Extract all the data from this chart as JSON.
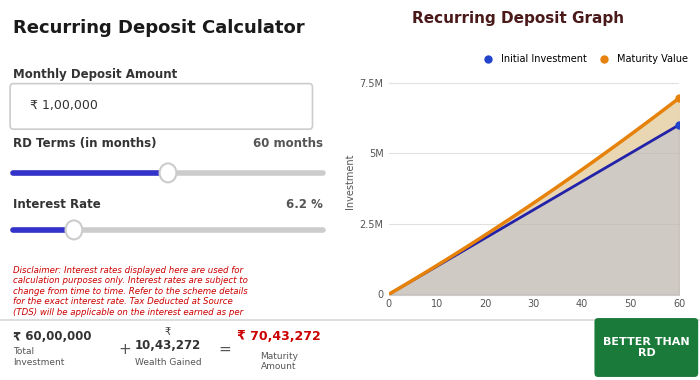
{
  "title_left": "Recurring Deposit Calculator",
  "title_right": "Recurring Deposit Graph",
  "monthly_deposit_label": "Monthly Deposit Amount",
  "monthly_deposit_value": "₹ 1,00,000",
  "rd_terms_label": "RD Terms (in months)",
  "rd_terms_value": "60 months",
  "interest_rate_label": "Interest Rate",
  "interest_rate_value": "6.2 %",
  "months": 60,
  "monthly_amount": 100000,
  "interest_rate": 6.2,
  "total_investment_str": "₹ 60,00,000",
  "wealth_rupee": "₹",
  "wealth_gained_num": "10,43,272",
  "maturity_amount_str": "₹ 70,43,272",
  "total_investment_label": "Total\nInvestment",
  "wealth_gained_label": "Wealth Gained",
  "maturity_label": "Maturity\nAmount",
  "button_text": "BETTER THAN\nRD",
  "legend_initial": "Initial Investment",
  "legend_maturity": "Maturity Value",
  "ylabel": "Investment",
  "disclaimer": "Disclaimer: Interest rates displayed here are used for\ncalculation purposes only. Interest rates are subject to\nchange from time to time. Refer to the scheme details\nfor the exact interest rate. Tax Deducted at Source\n(TDS) will be applicable on the interest earned as per",
  "yticks": [
    "0",
    "2.5M",
    "5M",
    "7.5M"
  ],
  "ytick_values": [
    0,
    2500000,
    5000000,
    7500000
  ],
  "xticks": [
    0,
    10,
    20,
    30,
    40,
    50,
    60
  ],
  "bg_color": "#ffffff",
  "slider_active_color": "#3333cc",
  "slider_inactive_color": "#cccccc",
  "input_border_color": "#cccccc",
  "blue_line_color": "#2222aa",
  "orange_line_color": "#e6820a",
  "fill_between_color": "#e8d5b0",
  "fill_below_blue_color": "#c0b9b0",
  "title_color": "#1a1a1a",
  "label_color": "#333333",
  "rd_label_color": "#555555",
  "disclaimer_color": "#cc0000",
  "total_inv_color": "#333333",
  "maturity_color": "#cc0000",
  "button_bg": "#1a7a3a",
  "button_text_color": "#ffffff",
  "graph_title_color": "#4a1a1a",
  "dot_blue": "#2244cc",
  "dot_orange": "#e6820a",
  "axis_tick_color": "#555555",
  "grid_color": "#e0e0e0",
  "plus_equals_color": "#555555",
  "sep_color": "#dddddd"
}
